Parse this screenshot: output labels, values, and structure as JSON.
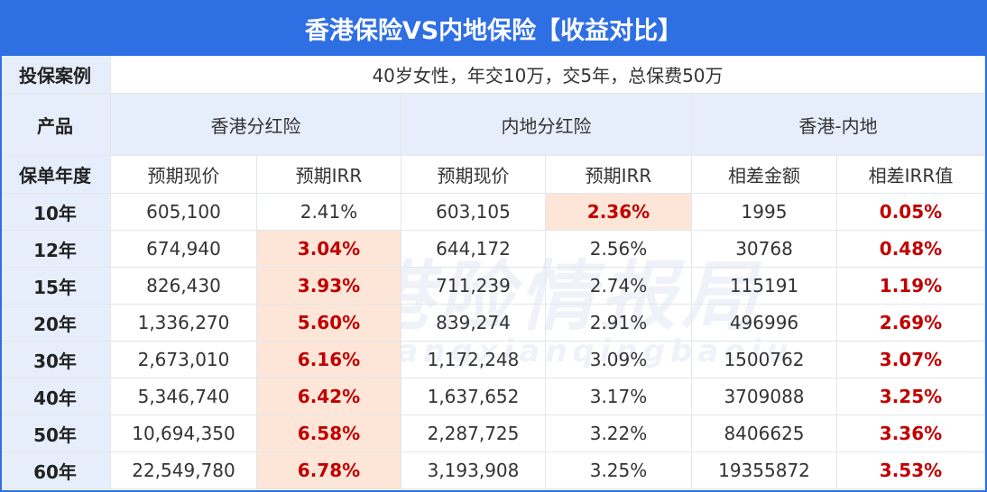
{
  "header": {
    "title": "香港保险VS内地保险【收益对比】"
  },
  "case": {
    "label": "投保案例",
    "value": "40岁女性，年交10万，交5年，总保费50万"
  },
  "products": {
    "label": "产品",
    "groups": [
      "香港分红险",
      "内地分红险",
      "香港-内地"
    ]
  },
  "columns": {
    "label": "保单年度",
    "names": [
      "预期现价",
      "预期IRR",
      "预期现价",
      "预期IRR",
      "相差金额",
      "相差IRR值"
    ]
  },
  "table": {
    "rows": [
      [
        "10年",
        "605,100",
        "2.41%",
        "603,105",
        "2.36%",
        "1995",
        "0.05%"
      ],
      [
        "12年",
        "674,940",
        "3.04%",
        "644,172",
        "2.56%",
        "30768",
        "0.48%"
      ],
      [
        "15年",
        "826,430",
        "3.93%",
        "711,239",
        "2.74%",
        "115191",
        "1.19%"
      ],
      [
        "20年",
        "1,336,270",
        "5.60%",
        "839,274",
        "2.91%",
        "496996",
        "2.69%"
      ],
      [
        "30年",
        "2,673,010",
        "6.16%",
        "1,172,248",
        "3.09%",
        "1500762",
        "3.07%"
      ],
      [
        "40年",
        "5,346,740",
        "6.42%",
        "1,637,652",
        "3.17%",
        "3709088",
        "3.25%"
      ],
      [
        "50年",
        "10,694,350",
        "6.58%",
        "2,287,725",
        "3.22%",
        "8406625",
        "3.36%"
      ],
      [
        "60年",
        "22,549,780",
        "6.78%",
        "3,193,908",
        "3.25%",
        "19355872",
        "3.53%"
      ]
    ]
  },
  "watermark": {
    "title": "港险情报局",
    "pinyin": "gangxianqingbaoju"
  }
}
